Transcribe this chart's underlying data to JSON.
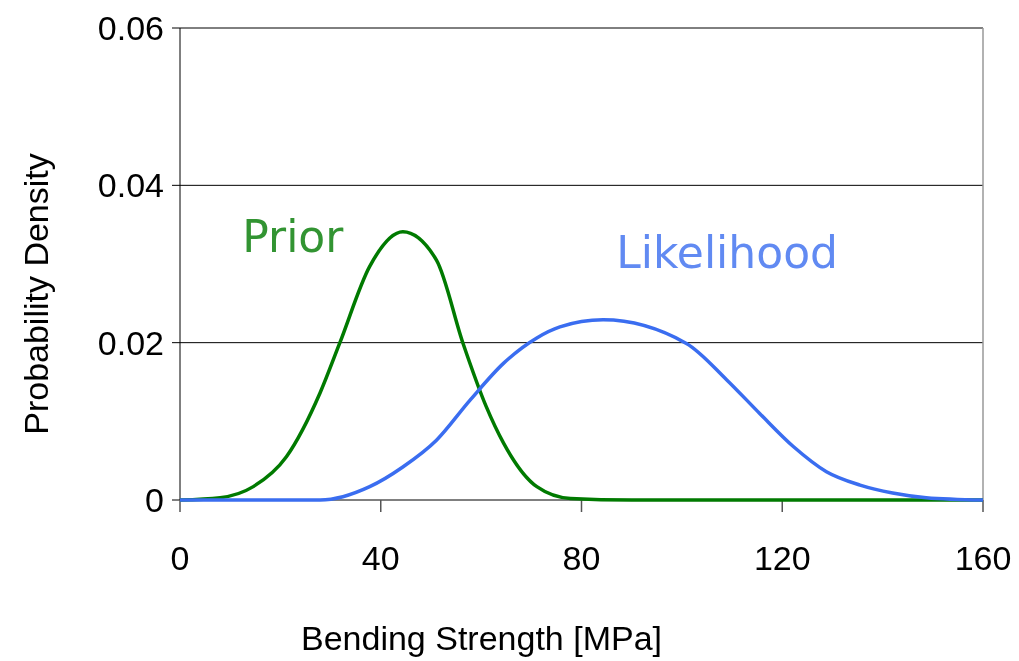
{
  "chart_data": {
    "type": "line",
    "xlabel": "Bending Strength [MPa]",
    "ylabel": "Probability Density",
    "xlim": [
      0,
      160
    ],
    "xticks": [
      0,
      40,
      80,
      120,
      160
    ],
    "ylim": [
      0,
      0.06
    ],
    "yticks": [
      0,
      0.02,
      0.04,
      0.06
    ],
    "grid": "y",
    "marker": "none",
    "line_style": "solid",
    "series": [
      {
        "name": "Prior",
        "color": "#007a00",
        "x": [
          0,
          8,
          14.6,
          21.2,
          27.9,
          31.8,
          37.8,
          44.4,
          51.1,
          56.4,
          61,
          64.5,
          71.1,
          77.8,
          90,
          160
        ],
        "values": [
          0,
          0.0003,
          0.0017,
          0.0055,
          0.0136,
          0.0199,
          0.0297,
          0.0341,
          0.0305,
          0.0199,
          0.0119,
          0.0072,
          0.0017,
          0.0002,
          0,
          0
        ]
      },
      {
        "name": "Likelihood",
        "color": "#3a6df0",
        "x": [
          0,
          27.9,
          37.8,
          44.4,
          51.1,
          57.8,
          64.5,
          71.1,
          75.7,
          84.3,
          100.9,
          108.9,
          115.5,
          122.2,
          128.8,
          135.5,
          142,
          148.7,
          160
        ],
        "values": [
          0,
          0,
          0.0017,
          0.0042,
          0.0076,
          0.0127,
          0.0174,
          0.0206,
          0.022,
          0.0229,
          0.0199,
          0.0153,
          0.011,
          0.0068,
          0.0036,
          0.0019,
          0.0009,
          0.0003,
          0
        ]
      }
    ]
  }
}
